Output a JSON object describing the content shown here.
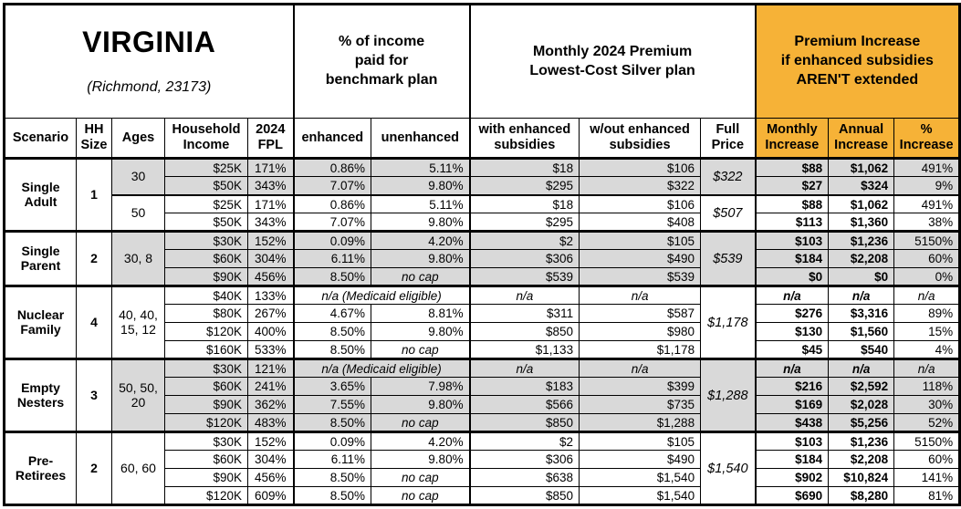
{
  "title": {
    "state": "VIRGINIA",
    "location": "(Richmond, 23173)"
  },
  "colors": {
    "accent_orange": "#F6B237",
    "shade_gray": "#D9D9D9"
  },
  "header": {
    "income_pct_group": "% of income\npaid for\nbenchmark plan",
    "premium_group": "Monthly 2024 Premium\nLowest-Cost Silver plan",
    "increase_group": "Premium Increase\nif enhanced subsidies\nAREN'T extended",
    "columns": {
      "scenario": "Scenario",
      "hh_size": "HH\nSize",
      "ages": "Ages",
      "household_income": "Household\nIncome",
      "fpl": "2024\nFPL",
      "enhanced": "enhanced",
      "unenhanced": "unenhanced",
      "with_subsidies": "with enhanced\nsubsidies",
      "without_subsidies": "w/out enhanced\nsubsidies",
      "full_price": "Full\nPrice",
      "monthly_increase": "Monthly\nIncrease",
      "annual_increase": "Annual\nIncrease",
      "pct_increase": "%\nIncrease"
    }
  },
  "groups": [
    {
      "scenario": "Single\nAdult",
      "hh_size": "1",
      "age_groups": [
        {
          "ages": "30",
          "shaded": true,
          "full_price": "$322",
          "rows": [
            {
              "income": "$25K",
              "fpl": "171%",
              "enhanced": "0.86%",
              "unenhanced": "5.11%",
              "with_sub": "$18",
              "without_sub": "$106",
              "monthly": "$88",
              "annual": "$1,062",
              "pct": "491%"
            },
            {
              "income": "$50K",
              "fpl": "343%",
              "enhanced": "7.07%",
              "unenhanced": "9.80%",
              "with_sub": "$295",
              "without_sub": "$322",
              "monthly": "$27",
              "annual": "$324",
              "pct": "9%"
            }
          ]
        },
        {
          "ages": "50",
          "shaded": false,
          "full_price": "$507",
          "rows": [
            {
              "income": "$25K",
              "fpl": "171%",
              "enhanced": "0.86%",
              "unenhanced": "5.11%",
              "with_sub": "$18",
              "without_sub": "$106",
              "monthly": "$88",
              "annual": "$1,062",
              "pct": "491%"
            },
            {
              "income": "$50K",
              "fpl": "343%",
              "enhanced": "7.07%",
              "unenhanced": "9.80%",
              "with_sub": "$295",
              "without_sub": "$408",
              "monthly": "$113",
              "annual": "$1,360",
              "pct": "38%"
            }
          ]
        }
      ]
    },
    {
      "scenario": "Single\nParent",
      "hh_size": "2",
      "age_groups": [
        {
          "ages": "30, 8",
          "shaded": true,
          "full_price": "$539",
          "rows": [
            {
              "income": "$30K",
              "fpl": "152%",
              "enhanced": "0.09%",
              "unenhanced": "4.20%",
              "with_sub": "$2",
              "without_sub": "$105",
              "monthly": "$103",
              "annual": "$1,236",
              "pct": "5150%"
            },
            {
              "income": "$60K",
              "fpl": "304%",
              "enhanced": "6.11%",
              "unenhanced": "9.80%",
              "with_sub": "$306",
              "without_sub": "$490",
              "monthly": "$184",
              "annual": "$2,208",
              "pct": "60%"
            },
            {
              "income": "$90K",
              "fpl": "456%",
              "enhanced": "8.50%",
              "unenhanced": "no cap",
              "with_sub": "$539",
              "without_sub": "$539",
              "monthly": "$0",
              "annual": "$0",
              "pct": "0%"
            }
          ]
        }
      ]
    },
    {
      "scenario": "Nuclear\nFamily",
      "hh_size": "4",
      "age_groups": [
        {
          "ages": "40, 40,\n15, 12",
          "shaded": false,
          "full_price": "$1,178",
          "rows": [
            {
              "income": "$40K",
              "fpl": "133%",
              "medicaid": "n/a (Medicaid eligible)",
              "with_sub": "n/a",
              "without_sub": "n/a",
              "monthly": "n/a",
              "annual": "n/a",
              "pct": "n/a"
            },
            {
              "income": "$80K",
              "fpl": "267%",
              "enhanced": "4.67%",
              "unenhanced": "8.81%",
              "with_sub": "$311",
              "without_sub": "$587",
              "monthly": "$276",
              "annual": "$3,316",
              "pct": "89%"
            },
            {
              "income": "$120K",
              "fpl": "400%",
              "enhanced": "8.50%",
              "unenhanced": "9.80%",
              "with_sub": "$850",
              "without_sub": "$980",
              "monthly": "$130",
              "annual": "$1,560",
              "pct": "15%"
            },
            {
              "income": "$160K",
              "fpl": "533%",
              "enhanced": "8.50%",
              "unenhanced": "no cap",
              "with_sub": "$1,133",
              "without_sub": "$1,178",
              "monthly": "$45",
              "annual": "$540",
              "pct": "4%"
            }
          ]
        }
      ]
    },
    {
      "scenario": "Empty\nNesters",
      "hh_size": "3",
      "age_groups": [
        {
          "ages": "50, 50,\n20",
          "shaded": true,
          "full_price": "$1,288",
          "rows": [
            {
              "income": "$30K",
              "fpl": "121%",
              "medicaid": "n/a (Medicaid eligible)",
              "with_sub": "n/a",
              "without_sub": "n/a",
              "monthly": "n/a",
              "annual": "n/a",
              "pct": "n/a"
            },
            {
              "income": "$60K",
              "fpl": "241%",
              "enhanced": "3.65%",
              "unenhanced": "7.98%",
              "with_sub": "$183",
              "without_sub": "$399",
              "monthly": "$216",
              "annual": "$2,592",
              "pct": "118%"
            },
            {
              "income": "$90K",
              "fpl": "362%",
              "enhanced": "7.55%",
              "unenhanced": "9.80%",
              "with_sub": "$566",
              "without_sub": "$735",
              "monthly": "$169",
              "annual": "$2,028",
              "pct": "30%"
            },
            {
              "income": "$120K",
              "fpl": "483%",
              "enhanced": "8.50%",
              "unenhanced": "no cap",
              "with_sub": "$850",
              "without_sub": "$1,288",
              "monthly": "$438",
              "annual": "$5,256",
              "pct": "52%"
            }
          ]
        }
      ]
    },
    {
      "scenario": "Pre-\nRetirees",
      "hh_size": "2",
      "age_groups": [
        {
          "ages": "60, 60",
          "shaded": false,
          "full_price": "$1,540",
          "rows": [
            {
              "income": "$30K",
              "fpl": "152%",
              "enhanced": "0.09%",
              "unenhanced": "4.20%",
              "with_sub": "$2",
              "without_sub": "$105",
              "monthly": "$103",
              "annual": "$1,236",
              "pct": "5150%"
            },
            {
              "income": "$60K",
              "fpl": "304%",
              "enhanced": "6.11%",
              "unenhanced": "9.80%",
              "with_sub": "$306",
              "without_sub": "$490",
              "monthly": "$184",
              "annual": "$2,208",
              "pct": "60%"
            },
            {
              "income": "$90K",
              "fpl": "456%",
              "enhanced": "8.50%",
              "unenhanced": "no cap",
              "with_sub": "$638",
              "without_sub": "$1,540",
              "monthly": "$902",
              "annual": "$10,824",
              "pct": "141%"
            },
            {
              "income": "$120K",
              "fpl": "609%",
              "enhanced": "8.50%",
              "unenhanced": "no cap",
              "with_sub": "$850",
              "without_sub": "$1,540",
              "monthly": "$690",
              "annual": "$8,280",
              "pct": "81%"
            }
          ]
        }
      ]
    }
  ]
}
